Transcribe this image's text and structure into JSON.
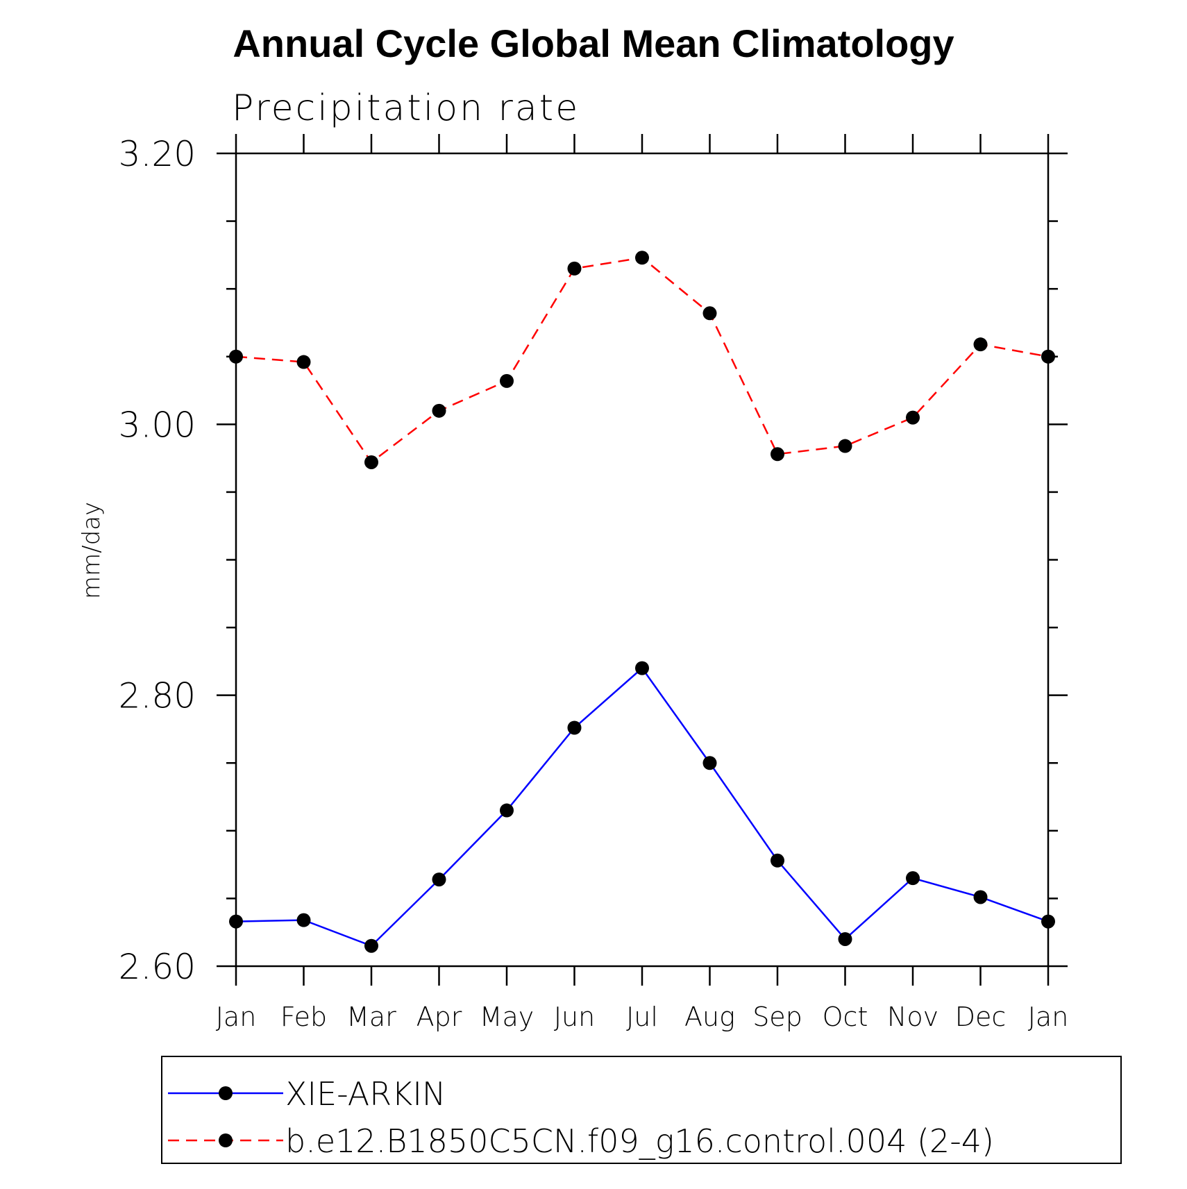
{
  "chart_data": {
    "type": "line",
    "title": "Annual Cycle Global Mean Climatology",
    "subtitle": "Precipitation rate",
    "xlabel": "",
    "ylabel": "mm/day",
    "categories": [
      "Jan",
      "Feb",
      "Mar",
      "Apr",
      "May",
      "Jun",
      "Jul",
      "Aug",
      "Sep",
      "Oct",
      "Nov",
      "Dec",
      "Jan"
    ],
    "ylim": [
      2.6,
      3.2
    ],
    "yticks": [
      "2.60",
      "2.80",
      "3.00",
      "3.20"
    ],
    "ytick_values": [
      2.6,
      2.8,
      3.0,
      3.2
    ],
    "grid": false,
    "legend_position": "bottom",
    "series": [
      {
        "name": "XIE-ARKIN",
        "color": "#0000ff",
        "line_style": "solid",
        "marker": "filled-circle",
        "values": [
          2.633,
          2.634,
          2.615,
          2.664,
          2.715,
          2.776,
          2.82,
          2.75,
          2.678,
          2.62,
          2.665,
          2.651,
          2.633
        ]
      },
      {
        "name": "b.e12.B1850C5CN.f09_g16.control.004 (2-4)",
        "color": "#ff0000",
        "line_style": "dashed",
        "marker": "filled-circle",
        "values": [
          3.05,
          3.046,
          2.972,
          3.01,
          3.032,
          3.115,
          3.123,
          3.082,
          2.978,
          2.984,
          3.005,
          3.059,
          3.05
        ]
      }
    ]
  }
}
